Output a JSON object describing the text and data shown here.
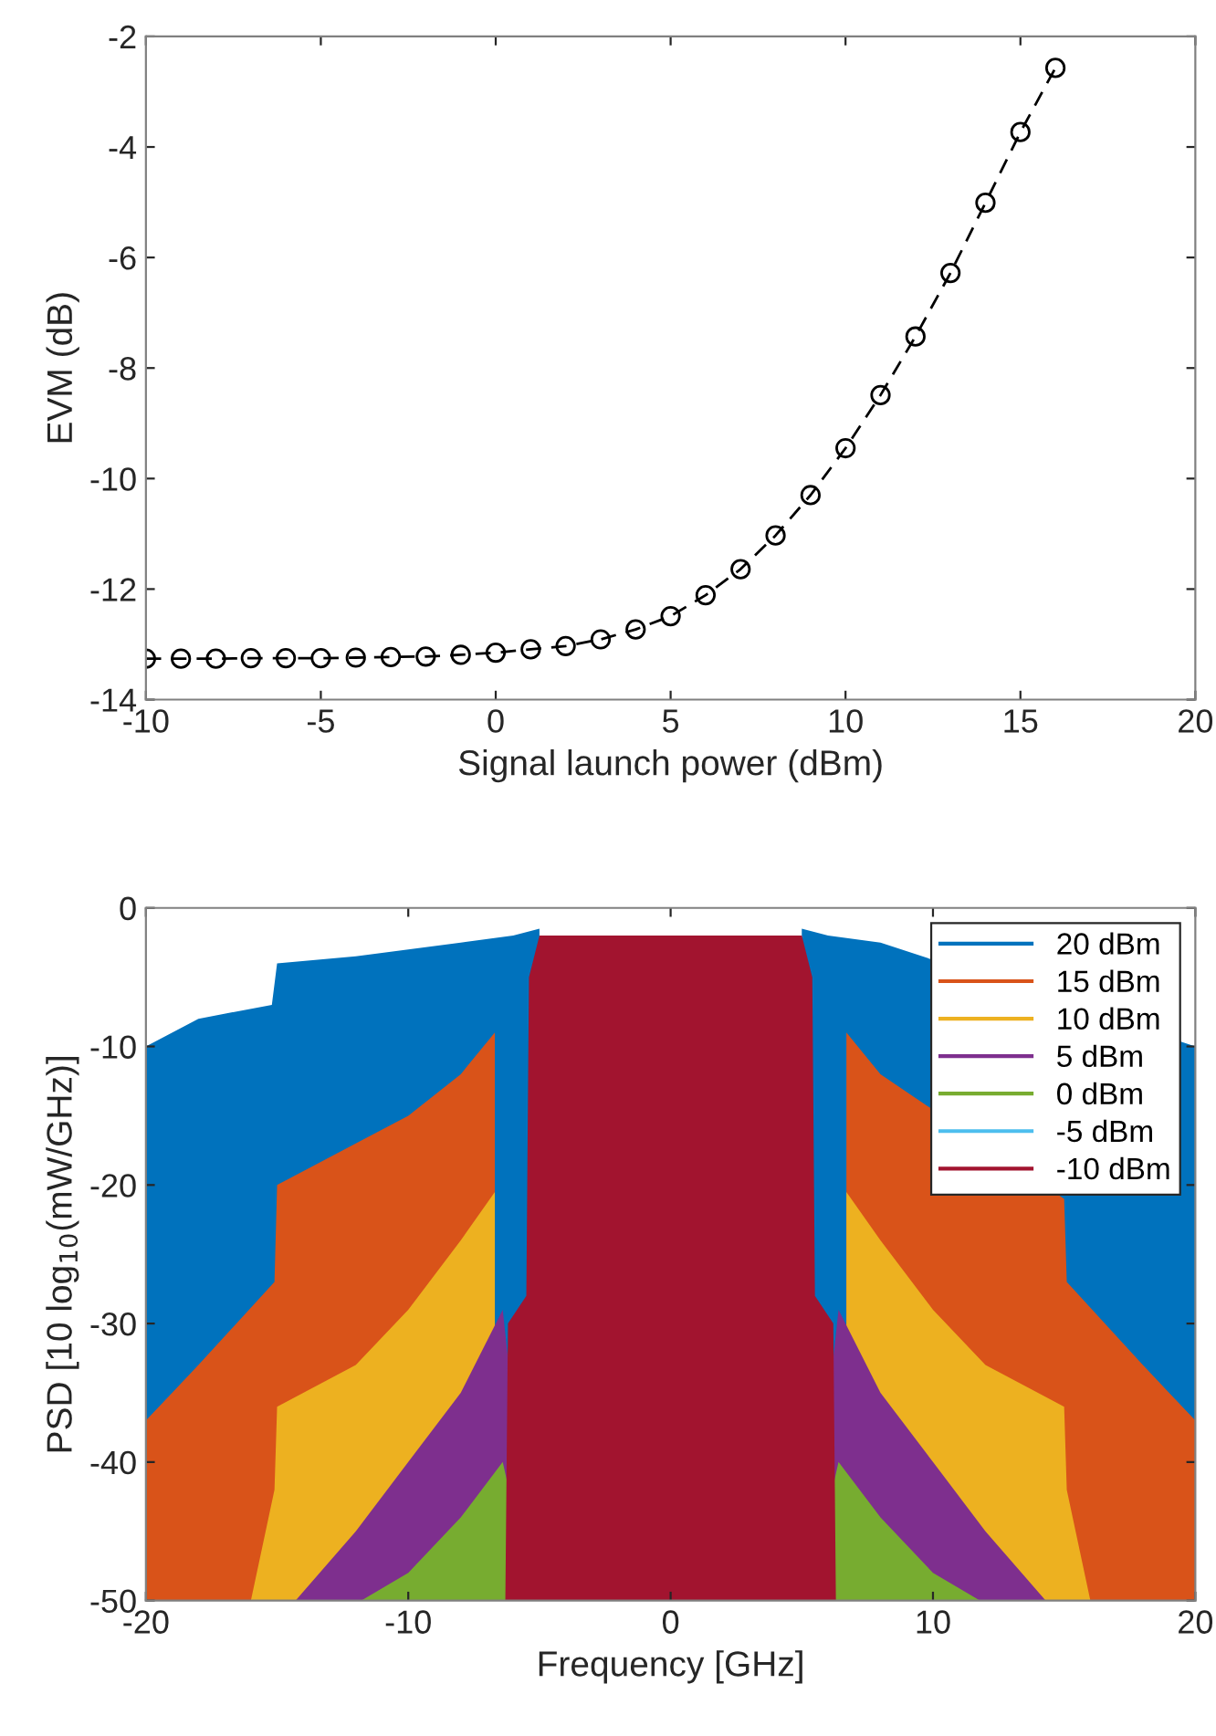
{
  "chart_data": [
    {
      "type": "line",
      "xlabel": "Signal launch power (dBm)",
      "ylabel": "EVM (dB)",
      "x": [
        -10,
        -9,
        -8,
        -7,
        -6,
        -5,
        -4,
        -3,
        -2,
        -1,
        0,
        1,
        2,
        3,
        4,
        5,
        6,
        7,
        8,
        9,
        10,
        11,
        12,
        13,
        14,
        15,
        16
      ],
      "series": [
        {
          "color": "#000000",
          "values": [
            -13.26,
            -13.26,
            -13.26,
            -13.25,
            -13.25,
            -13.25,
            -13.24,
            -13.23,
            -13.22,
            -13.19,
            -13.15,
            -13.09,
            -13.03,
            -12.91,
            -12.73,
            -12.49,
            -12.11,
            -11.64,
            -11.03,
            -10.3,
            -9.45,
            -8.49,
            -7.43,
            -6.28,
            -5.01,
            -3.73,
            -2.57
          ]
        }
      ],
      "marker": "circle",
      "line_style": "dashed",
      "xlim": [
        -10,
        20
      ],
      "xticks": [
        -10,
        -5,
        0,
        5,
        10,
        15,
        20
      ],
      "ylim": [
        -14,
        -2
      ],
      "yticks": [
        -14,
        -12,
        -10,
        -8,
        -6,
        -4,
        -2
      ]
    },
    {
      "type": "area",
      "xlabel": "Frequency [GHz]",
      "ylabel": "PSD [10 log$_{10}$(mW/GHz)]",
      "series": [
        {
          "name": "20 dBm",
          "color": "#0072bd",
          "x": [
            -20,
            -20,
            -18,
            -15.2,
            -15,
            -12,
            -10,
            -8,
            -6,
            -5,
            -4.9,
            0,
            4.9,
            5,
            6,
            8,
            20,
            20
          ],
          "values": [
            -50,
            -10,
            -8,
            -7,
            -4,
            -3.5,
            -3,
            -2.5,
            -2,
            -1.5,
            -50,
            null,
            -50,
            -1.5,
            -2,
            -2.5,
            -10,
            -50
          ]
        },
        {
          "name": "15 dBm",
          "color": "#d95319",
          "x": [
            -20,
            -20,
            -18,
            -15.1,
            -15,
            -12,
            -10,
            -8,
            -6.7,
            -6.7,
            0,
            6.7,
            6.7,
            8,
            15,
            15.1,
            18,
            20,
            20
          ],
          "values": [
            -50,
            -37,
            -33,
            -27,
            -20,
            -17,
            -15,
            -12,
            -9,
            -50,
            null,
            -50,
            -9,
            -12,
            -21,
            -27,
            -33,
            -37,
            -50
          ]
        },
        {
          "name": "10 dBm",
          "color": "#edb120",
          "x": [
            -16,
            -15.1,
            -15,
            -12,
            -10,
            -8,
            -6.7,
            -6.7,
            0,
            6.7,
            6.7,
            8,
            10,
            12,
            15,
            15.1,
            16
          ],
          "values": [
            -50,
            -42,
            -36,
            -33,
            -29,
            -24,
            -20.5,
            -50,
            null,
            -50,
            -20.5,
            -24,
            -29,
            -33,
            -36,
            -42,
            -50
          ]
        },
        {
          "name": "5 dBm",
          "color": "#7e2f8e",
          "x": [
            -14.3,
            -12,
            -10,
            -8,
            -6.4,
            -5.2,
            0,
            5.2,
            6.4,
            8,
            10,
            12,
            14.3
          ],
          "values": [
            -50,
            -45,
            -40,
            -35,
            -29,
            -50,
            null,
            -50,
            -29,
            -35,
            -40,
            -45,
            -50
          ]
        },
        {
          "name": "0 dBm",
          "color": "#77ac30",
          "x": [
            -11.8,
            -10,
            -8,
            -6.4,
            -5.2,
            0,
            5.2,
            6.4,
            8,
            10,
            11.8
          ],
          "values": [
            -50,
            -48,
            -44,
            -40,
            -50,
            null,
            -50,
            -40,
            -44,
            -48,
            -50
          ]
        },
        {
          "name": "-5 dBm",
          "color": "#4dbeee"
        },
        {
          "name": "-10 dBm",
          "color": "#a2142f",
          "x": [
            -6.3,
            -6.2,
            -5.5,
            -5.4,
            -5,
            0,
            5,
            5.4,
            5.5,
            6.2,
            6.3
          ],
          "values": [
            -50,
            -30,
            -28,
            -5,
            -2,
            -2,
            -2,
            -5,
            -28,
            -30,
            -50
          ]
        }
      ],
      "legend": "top right",
      "xlim": [
        -20,
        20
      ],
      "xticks": [
        -20,
        -10,
        0,
        10,
        20
      ],
      "ylim": [
        -50,
        0
      ],
      "yticks": [
        -50,
        -40,
        -30,
        -20,
        -10,
        0
      ]
    }
  ]
}
